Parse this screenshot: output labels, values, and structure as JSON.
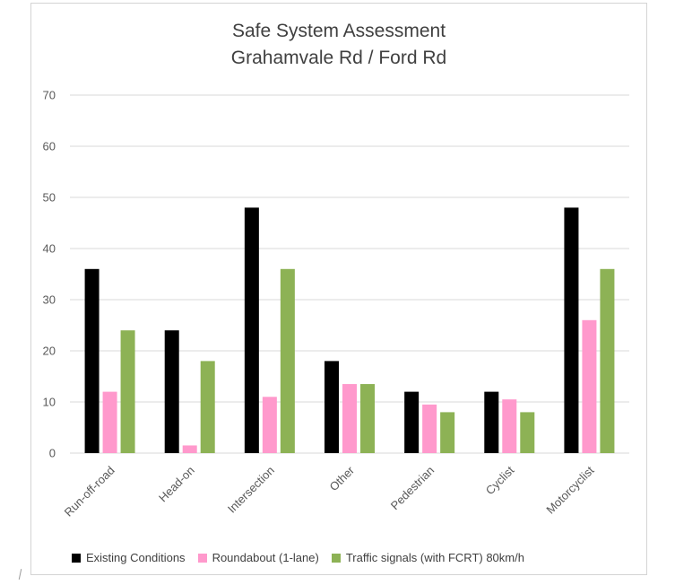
{
  "chart_data": {
    "type": "bar",
    "title": "Safe System Assessment",
    "subtitle": "Grahamvale Rd / Ford Rd",
    "xlabel": "",
    "ylabel": "",
    "ylim": [
      0,
      70
    ],
    "yticks": [
      "0",
      "10",
      "20",
      "30",
      "40",
      "50",
      "60",
      "70"
    ],
    "grid": true,
    "legend_position": "bottom",
    "categories": [
      "Run-off-road",
      "Head-on",
      "Intersection",
      "Other",
      "Pedestrian",
      "Cyclist",
      "Motorcyclist"
    ],
    "series": [
      {
        "name": "Existing Conditions",
        "color": "#000000",
        "values": [
          36,
          24,
          48,
          18,
          12,
          12,
          48
        ]
      },
      {
        "name": "Roundabout (1-lane)",
        "color": "#ff99cc",
        "values": [
          12,
          1.5,
          11,
          13.5,
          9.5,
          10.5,
          26
        ]
      },
      {
        "name": "Traffic signals (with FCRT) 80km/h",
        "color": "#8db255",
        "values": [
          24,
          18,
          36,
          13.5,
          8,
          8,
          36
        ]
      }
    ]
  }
}
